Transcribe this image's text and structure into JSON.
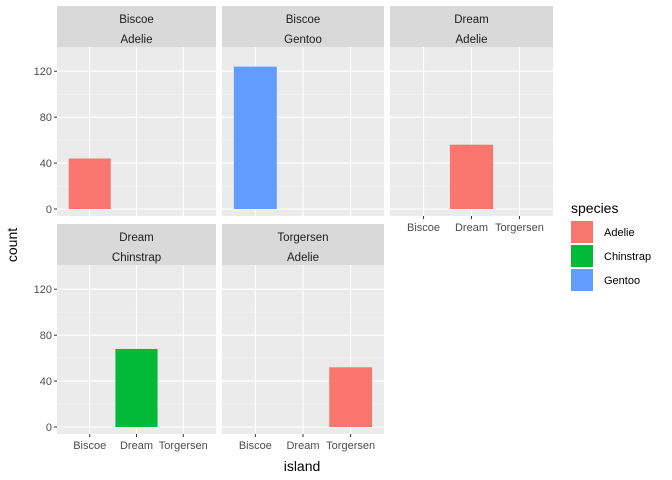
{
  "chart_data": {
    "type": "bar",
    "xlabel": "island",
    "ylabel": "count",
    "title": "",
    "ylim": [
      0,
      160
    ],
    "y_ticks": [
      0,
      40,
      80,
      120
    ],
    "x_categories": [
      "Biscoe",
      "Dream",
      "Torgersen"
    ],
    "grid": true,
    "legend": {
      "title": "species",
      "position": "right",
      "entries": [
        {
          "label": "Adelie",
          "color": "#F8766D"
        },
        {
          "label": "Chinstrap",
          "color": "#00BA38"
        },
        {
          "label": "Gentoo",
          "color": "#619CFF"
        }
      ]
    },
    "facets": [
      {
        "strip_top": "Biscoe",
        "strip_bottom": "Adelie",
        "bars": [
          {
            "x": "Biscoe",
            "value": 44,
            "species": "Adelie"
          }
        ]
      },
      {
        "strip_top": "Biscoe",
        "strip_bottom": "Gentoo",
        "bars": [
          {
            "x": "Biscoe",
            "value": 124,
            "species": "Gentoo"
          }
        ]
      },
      {
        "strip_top": "Dream",
        "strip_bottom": "Adelie",
        "bars": [
          {
            "x": "Dream",
            "value": 56,
            "species": "Adelie"
          }
        ]
      },
      {
        "strip_top": "Dream",
        "strip_bottom": "Chinstrap",
        "bars": [
          {
            "x": "Dream",
            "value": 68,
            "species": "Chinstrap"
          }
        ]
      },
      {
        "strip_top": "Torgersen",
        "strip_bottom": "Adelie",
        "bars": [
          {
            "x": "Torgersen",
            "value": 52,
            "species": "Adelie"
          }
        ]
      }
    ]
  }
}
